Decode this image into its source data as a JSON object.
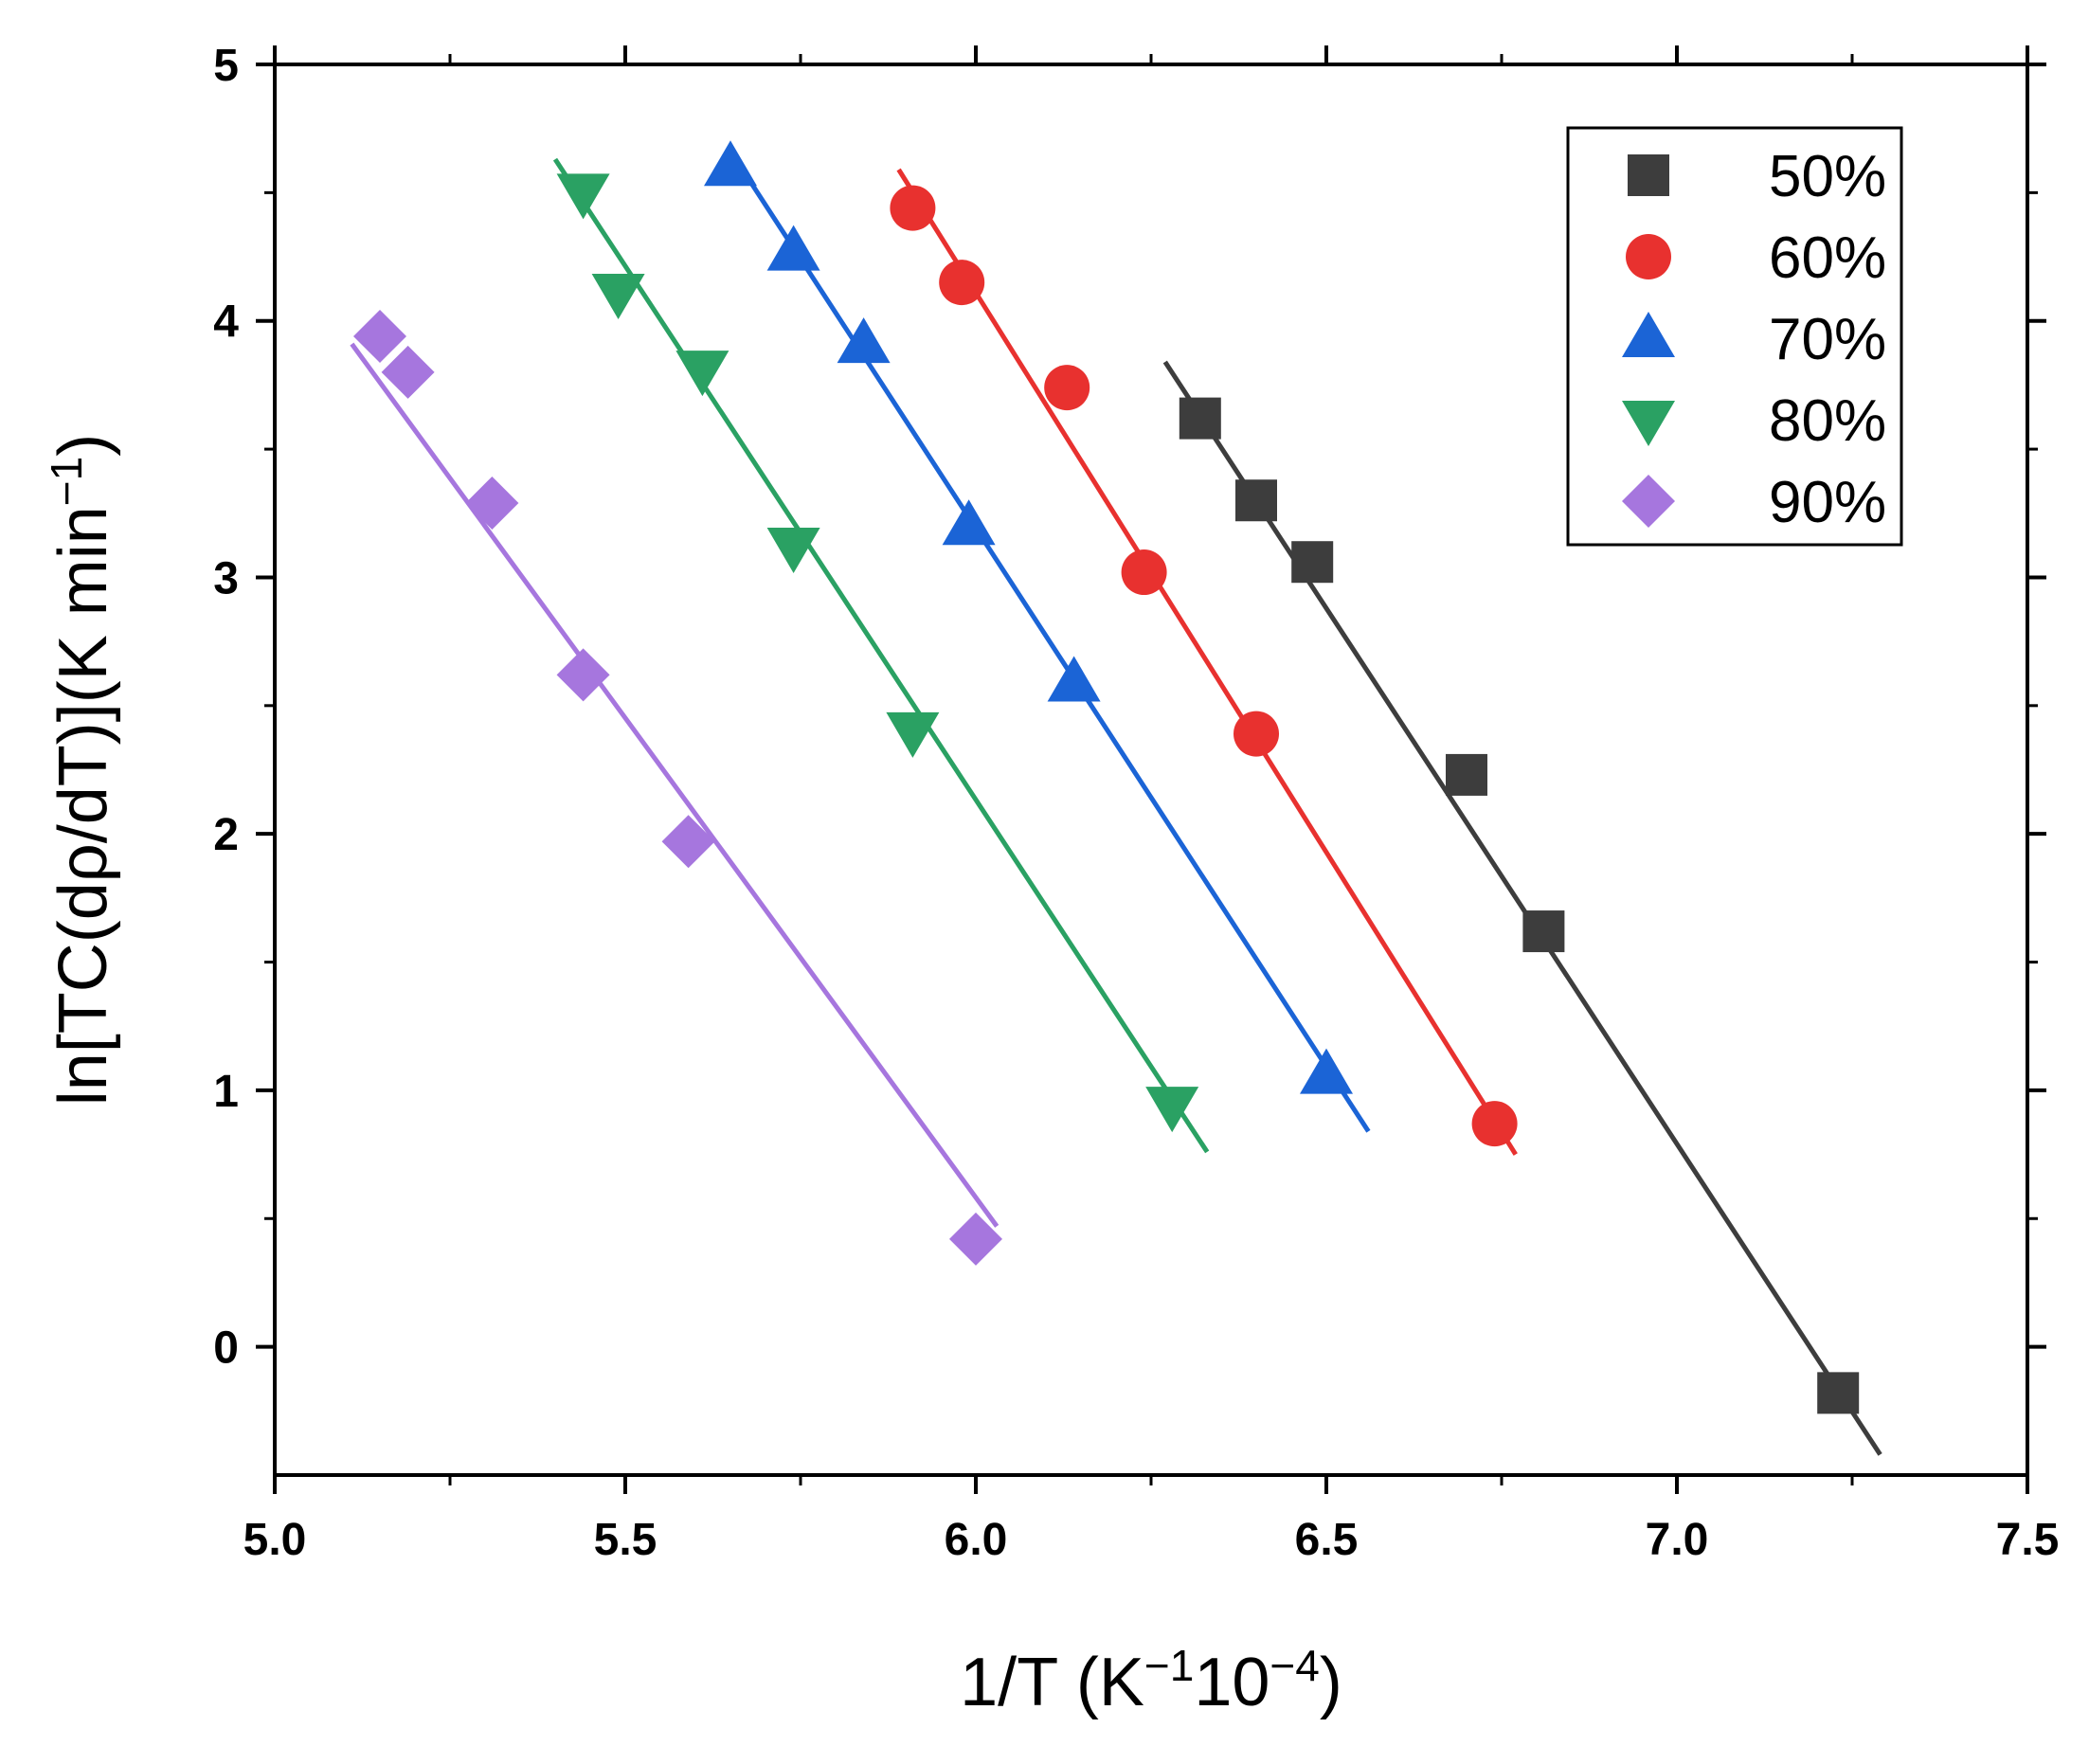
{
  "chart_data": {
    "type": "scatter",
    "title": "",
    "xlabel": {
      "base": "1/T (K",
      "sup1": "−1",
      "mid": "10",
      "sup2": "−4",
      "end": ")"
    },
    "ylabel": {
      "base": "ln[TC(dρ/dT)](K min",
      "sup": "−1",
      "end": ")"
    },
    "xlim": [
      5.0,
      7.5
    ],
    "ylim": [
      -0.5,
      5.0
    ],
    "x_ticks": [
      5.0,
      5.5,
      6.0,
      6.5,
      7.0,
      7.5
    ],
    "x_tick_labels": [
      "5.0",
      "5.5",
      "6.0",
      "6.5",
      "7.0",
      "7.5"
    ],
    "y_ticks": [
      0,
      1,
      2,
      3,
      4,
      5
    ],
    "y_tick_labels": [
      "0",
      "1",
      "2",
      "3",
      "4",
      "5"
    ],
    "legend_position": "top-right",
    "series": [
      {
        "name": "50%",
        "marker": "square",
        "color": "#3d3d3d",
        "points": [
          [
            6.32,
            3.62
          ],
          [
            6.4,
            3.3
          ],
          [
            6.48,
            3.06
          ],
          [
            6.7,
            2.23
          ],
          [
            6.81,
            1.62
          ],
          [
            7.23,
            -0.18
          ]
        ],
        "fit": {
          "x": [
            6.27,
            7.29
          ],
          "y": [
            3.84,
            -0.42
          ]
        }
      },
      {
        "name": "60%",
        "marker": "circle",
        "color": "#e8312f",
        "points": [
          [
            5.91,
            4.44
          ],
          [
            5.98,
            4.15
          ],
          [
            6.13,
            3.74
          ],
          [
            6.24,
            3.02
          ],
          [
            6.4,
            2.39
          ],
          [
            6.74,
            0.87
          ]
        ],
        "fit": {
          "x": [
            5.89,
            6.77
          ],
          "y": [
            4.59,
            0.75
          ]
        }
      },
      {
        "name": "70%",
        "marker": "triangle-up",
        "color": "#1b64d6",
        "points": [
          [
            5.65,
            4.6
          ],
          [
            5.74,
            4.27
          ],
          [
            5.84,
            3.91
          ],
          [
            5.99,
            3.2
          ],
          [
            6.14,
            2.59
          ],
          [
            6.5,
            1.06
          ]
        ],
        "fit": {
          "x": [
            5.66,
            6.56
          ],
          "y": [
            4.62,
            0.84
          ]
        }
      },
      {
        "name": "80%",
        "marker": "triangle-down",
        "color": "#2aa163",
        "points": [
          [
            5.44,
            4.5
          ],
          [
            5.49,
            4.11
          ],
          [
            5.61,
            3.81
          ],
          [
            5.74,
            3.12
          ],
          [
            5.91,
            2.4
          ],
          [
            6.28,
            0.94
          ]
        ],
        "fit": {
          "x": [
            5.4,
            6.33
          ],
          "y": [
            4.63,
            0.76
          ]
        }
      },
      {
        "name": "90%",
        "marker": "diamond",
        "color": "#a676de",
        "points": [
          [
            5.15,
            3.94
          ],
          [
            5.19,
            3.8
          ],
          [
            5.31,
            3.29
          ],
          [
            5.44,
            2.62
          ],
          [
            5.59,
            1.97
          ],
          [
            6.0,
            0.42
          ]
        ],
        "fit": {
          "x": [
            5.11,
            6.03
          ],
          "y": [
            3.91,
            0.47
          ]
        }
      }
    ]
  }
}
